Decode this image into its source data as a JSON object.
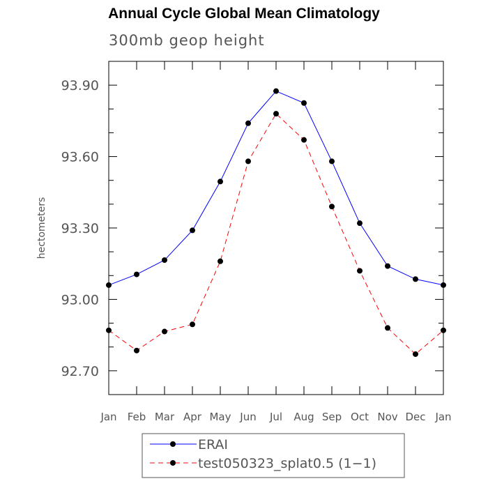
{
  "chart_data": {
    "type": "line",
    "title": "Annual Cycle Global Mean Climatology",
    "subtitle": "300mb geop height",
    "xlabel": "",
    "ylabel": "hectometers",
    "categories": [
      "Jan",
      "Feb",
      "Mar",
      "Apr",
      "May",
      "Jun",
      "Jul",
      "Aug",
      "Sep",
      "Oct",
      "Nov",
      "Dec",
      "Jan"
    ],
    "yticks": [
      "92.70",
      "93.00",
      "93.30",
      "93.60",
      "93.90"
    ],
    "ylim": [
      92.6,
      94.0
    ],
    "grid": false,
    "legend_position": "bottom",
    "series": [
      {
        "name": "ERAI",
        "color": "#0000ff",
        "dash": "solid",
        "values": [
          93.06,
          93.105,
          93.165,
          93.29,
          93.495,
          93.74,
          93.875,
          93.825,
          93.58,
          93.32,
          93.14,
          93.085,
          93.06
        ]
      },
      {
        "name": "test050323_splat0.5 (1−1)",
        "color": "#ff0000",
        "dash": "dashed",
        "values": [
          92.87,
          92.785,
          92.865,
          92.895,
          93.16,
          93.58,
          93.78,
          93.67,
          93.39,
          93.12,
          92.88,
          92.77,
          92.87
        ]
      }
    ]
  }
}
